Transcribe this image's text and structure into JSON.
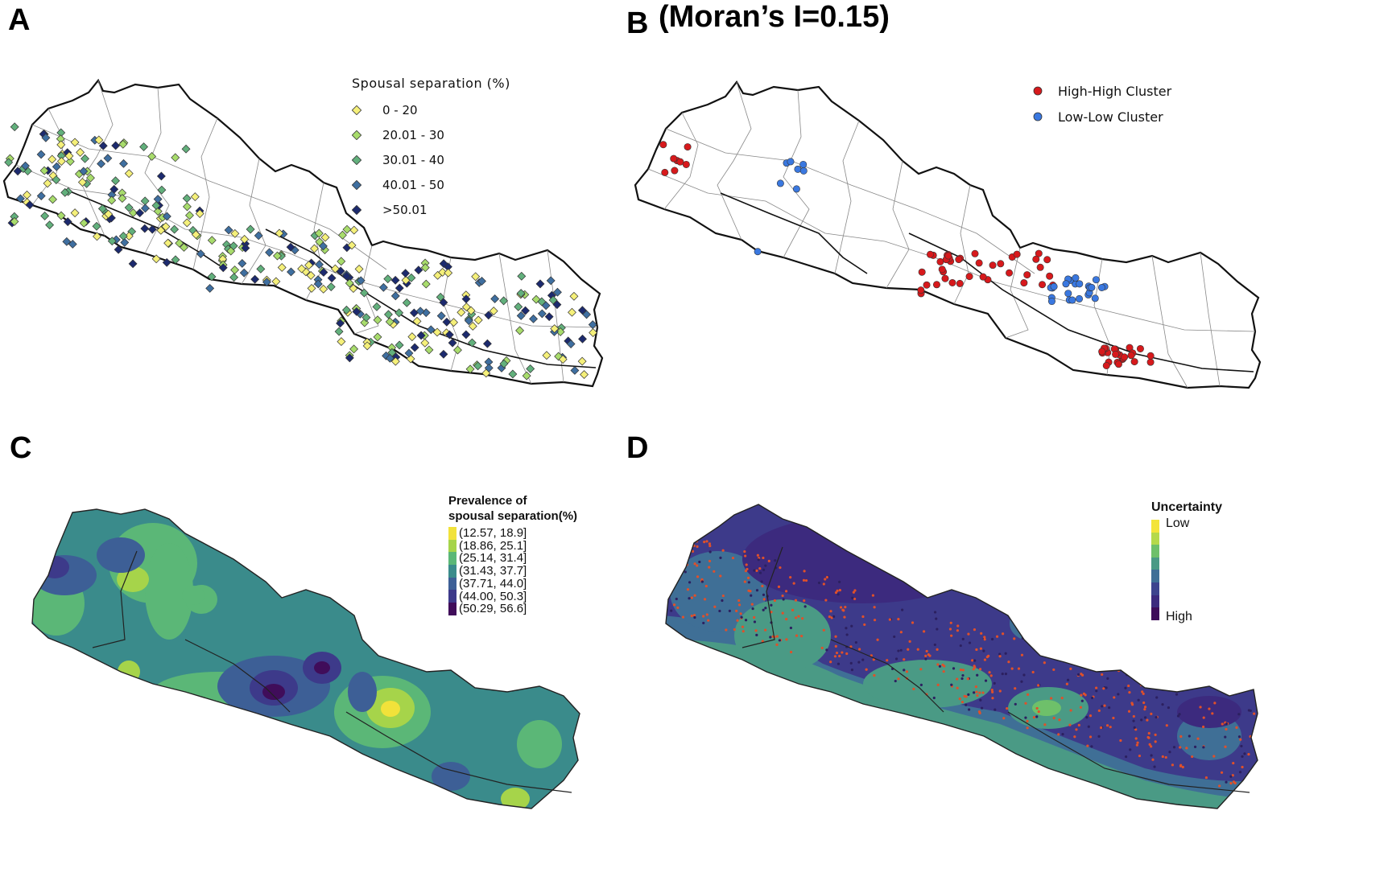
{
  "panels": {
    "a": {
      "letter": "A",
      "legend": {
        "title": "Spousal separation (%)",
        "classes": [
          {
            "label": "0 - 20",
            "color": "#f5f07a"
          },
          {
            "label": "20.01 - 30",
            "color": "#a8dc6c"
          },
          {
            "label": "30.01 - 40",
            "color": "#62b07c"
          },
          {
            "label": "40.01 - 50",
            "color": "#3f6fa0"
          },
          {
            "label": ">50.01",
            "color": "#1c2a6e"
          }
        ]
      }
    },
    "b": {
      "letter": "B",
      "moran": "(Moran’s I=0.15)",
      "legend": [
        {
          "label": "High-High Cluster",
          "color": "#d7191c"
        },
        {
          "label": "Low-Low Cluster",
          "color": "#3a78e0"
        }
      ]
    },
    "c": {
      "letter": "C",
      "legend": {
        "title_line1": "Prevalence of",
        "title_line2": "spousal separation(%)",
        "classes": [
          {
            "label": "(12.57, 18.9]",
            "color": "#f1e23a"
          },
          {
            "label": "(18.86, 25.1]",
            "color": "#a6d44a"
          },
          {
            "label": "(25.14, 31.4]",
            "color": "#5bb777"
          },
          {
            "label": "(31.43, 37.7]",
            "color": "#3a8b8b"
          },
          {
            "label": "(37.71, 44.0]",
            "color": "#3d5f96"
          },
          {
            "label": "(44.00, 50.3]",
            "color": "#3d3a8a"
          },
          {
            "label": "(50.29, 56.6]",
            "color": "#400d5a"
          }
        ]
      }
    },
    "d": {
      "letter": "D",
      "legend": {
        "title": "Uncertainty",
        "low": "Low",
        "high": "High",
        "colors": [
          "#f3e43a",
          "#b5d94a",
          "#6ec06a",
          "#4a9a85",
          "#3f6f96",
          "#3d448e",
          "#3c2a7e",
          "#3d0c5a"
        ]
      }
    }
  }
}
